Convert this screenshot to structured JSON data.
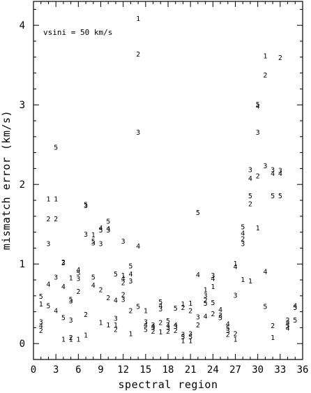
{
  "chart_data": {
    "type": "scatter",
    "title": "",
    "xlabel": "spectral region",
    "ylabel": "mismatch error (km/s)",
    "xlim": [
      0,
      36
    ],
    "ylim": [
      -0.2,
      4.3
    ],
    "x_ticks": [
      "0",
      "3",
      "6",
      "9",
      "12",
      "15",
      "18",
      "21",
      "24",
      "27",
      "30",
      "33",
      "36"
    ],
    "y_ticks": [
      "0",
      "1",
      "2",
      "3",
      "4"
    ],
    "grid": false,
    "annotation": "vsini = 50 km/s",
    "marker_style": "series digit drawn as text",
    "points": [
      {
        "x": 1,
        "y": 0.6,
        "m": "5"
      },
      {
        "x": 1,
        "y": 0.5,
        "m": "1"
      },
      {
        "x": 1,
        "y": 0.28,
        "m": "3"
      },
      {
        "x": 1,
        "y": 0.23,
        "m": "4"
      },
      {
        "x": 1,
        "y": 0.17,
        "m": "2"
      },
      {
        "x": 2,
        "y": 1.82,
        "m": "1"
      },
      {
        "x": 2,
        "y": 1.57,
        "m": "2"
      },
      {
        "x": 2,
        "y": 1.26,
        "m": "3"
      },
      {
        "x": 2,
        "y": 0.75,
        "m": "4"
      },
      {
        "x": 2,
        "y": 0.48,
        "m": "5"
      },
      {
        "x": 3,
        "y": 2.47,
        "m": "5"
      },
      {
        "x": 3,
        "y": 1.82,
        "m": "1"
      },
      {
        "x": 3,
        "y": 1.57,
        "m": "2"
      },
      {
        "x": 3,
        "y": 0.84,
        "m": "3"
      },
      {
        "x": 3,
        "y": 0.42,
        "m": "4"
      },
      {
        "x": 4,
        "y": 1.03,
        "m": "2"
      },
      {
        "x": 4,
        "y": 1.02,
        "m": "3"
      },
      {
        "x": 4,
        "y": 0.72,
        "m": "4"
      },
      {
        "x": 4,
        "y": 0.33,
        "m": "5"
      },
      {
        "x": 4,
        "y": 0.06,
        "m": "1"
      },
      {
        "x": 5,
        "y": 0.83,
        "m": "1"
      },
      {
        "x": 5,
        "y": 0.56,
        "m": "5"
      },
      {
        "x": 5,
        "y": 0.54,
        "m": "3"
      },
      {
        "x": 5,
        "y": 0.3,
        "m": "3"
      },
      {
        "x": 5,
        "y": 0.08,
        "m": "2"
      },
      {
        "x": 5,
        "y": 0.06,
        "m": "1"
      },
      {
        "x": 6,
        "y": 0.93,
        "m": "4"
      },
      {
        "x": 6,
        "y": 0.89,
        "m": "5"
      },
      {
        "x": 6,
        "y": 0.82,
        "m": "3"
      },
      {
        "x": 6,
        "y": 0.66,
        "m": "2"
      },
      {
        "x": 6,
        "y": 0.06,
        "m": "1"
      },
      {
        "x": 7,
        "y": 1.75,
        "m": "5"
      },
      {
        "x": 7,
        "y": 1.74,
        "m": "3"
      },
      {
        "x": 7,
        "y": 1.38,
        "m": "3"
      },
      {
        "x": 7,
        "y": 0.37,
        "m": "2"
      },
      {
        "x": 7,
        "y": 0.11,
        "m": "1"
      },
      {
        "x": 8,
        "y": 1.37,
        "m": "1"
      },
      {
        "x": 8,
        "y": 1.29,
        "m": "5"
      },
      {
        "x": 8,
        "y": 1.27,
        "m": "3"
      },
      {
        "x": 8,
        "y": 0.84,
        "m": "5"
      },
      {
        "x": 8,
        "y": 0.74,
        "m": "4"
      },
      {
        "x": 9,
        "y": 1.46,
        "m": "4"
      },
      {
        "x": 9,
        "y": 1.43,
        "m": "5"
      },
      {
        "x": 9,
        "y": 1.26,
        "m": "3"
      },
      {
        "x": 9,
        "y": 0.68,
        "m": "2"
      },
      {
        "x": 9,
        "y": 0.27,
        "m": "1"
      },
      {
        "x": 10,
        "y": 1.54,
        "m": "5"
      },
      {
        "x": 10,
        "y": 1.45,
        "m": "4"
      },
      {
        "x": 10,
        "y": 1.43,
        "m": "3"
      },
      {
        "x": 10,
        "y": 0.58,
        "m": "2"
      },
      {
        "x": 10,
        "y": 0.24,
        "m": "1"
      },
      {
        "x": 11,
        "y": 0.88,
        "m": "5"
      },
      {
        "x": 11,
        "y": 0.55,
        "m": "4"
      },
      {
        "x": 11,
        "y": 0.32,
        "m": "3"
      },
      {
        "x": 11,
        "y": 0.24,
        "m": "1"
      },
      {
        "x": 11,
        "y": 0.18,
        "m": "2"
      },
      {
        "x": 12,
        "y": 1.29,
        "m": "3"
      },
      {
        "x": 12,
        "y": 0.86,
        "m": "1"
      },
      {
        "x": 12,
        "y": 0.82,
        "m": "4"
      },
      {
        "x": 12,
        "y": 0.77,
        "m": "2"
      },
      {
        "x": 12,
        "y": 0.62,
        "m": "2"
      },
      {
        "x": 12,
        "y": 0.56,
        "m": "3"
      },
      {
        "x": 13,
        "y": 0.98,
        "m": "5"
      },
      {
        "x": 13,
        "y": 0.88,
        "m": "4"
      },
      {
        "x": 13,
        "y": 0.79,
        "m": "3"
      },
      {
        "x": 13,
        "y": 0.42,
        "m": "2"
      },
      {
        "x": 13,
        "y": 0.13,
        "m": "1"
      },
      {
        "x": 14,
        "y": 4.09,
        "m": "1"
      },
      {
        "x": 14,
        "y": 3.64,
        "m": "2"
      },
      {
        "x": 14,
        "y": 2.66,
        "m": "3"
      },
      {
        "x": 14,
        "y": 1.23,
        "m": "4"
      },
      {
        "x": 14,
        "y": 0.47,
        "m": "5"
      },
      {
        "x": 15,
        "y": 0.42,
        "m": "1"
      },
      {
        "x": 15,
        "y": 0.28,
        "m": "3"
      },
      {
        "x": 15,
        "y": 0.24,
        "m": "4"
      },
      {
        "x": 15,
        "y": 0.18,
        "m": "5"
      },
      {
        "x": 16,
        "y": 0.24,
        "m": "3"
      },
      {
        "x": 16,
        "y": 0.22,
        "m": "4"
      },
      {
        "x": 16,
        "y": 0.21,
        "m": "5"
      },
      {
        "x": 16,
        "y": 0.16,
        "m": "2"
      },
      {
        "x": 17,
        "y": 0.53,
        "m": "5"
      },
      {
        "x": 17,
        "y": 0.48,
        "m": "4"
      },
      {
        "x": 17,
        "y": 0.44,
        "m": "3"
      },
      {
        "x": 17,
        "y": 0.27,
        "m": "2"
      },
      {
        "x": 17,
        "y": 0.15,
        "m": "1"
      },
      {
        "x": 18,
        "y": 0.29,
        "m": "5"
      },
      {
        "x": 18,
        "y": 0.23,
        "m": "4"
      },
      {
        "x": 18,
        "y": 0.21,
        "m": "3"
      },
      {
        "x": 18,
        "y": 0.16,
        "m": "2"
      },
      {
        "x": 19,
        "y": 0.24,
        "m": "4"
      },
      {
        "x": 19,
        "y": 0.22,
        "m": "3"
      },
      {
        "x": 19,
        "y": 0.17,
        "m": "2"
      },
      {
        "x": 19,
        "y": 0.45,
        "m": "5"
      },
      {
        "x": 20,
        "y": 0.5,
        "m": "1"
      },
      {
        "x": 20,
        "y": 0.46,
        "m": "2"
      },
      {
        "x": 20,
        "y": 0.12,
        "m": "3"
      },
      {
        "x": 20,
        "y": 0.09,
        "m": "5"
      },
      {
        "x": 20,
        "y": 0.04,
        "m": "1"
      },
      {
        "x": 21,
        "y": 0.51,
        "m": "1"
      },
      {
        "x": 21,
        "y": 0.42,
        "m": "2"
      },
      {
        "x": 21,
        "y": 0.13,
        "m": "3"
      },
      {
        "x": 21,
        "y": 0.09,
        "m": "5"
      },
      {
        "x": 21,
        "y": 0.04,
        "m": "1"
      },
      {
        "x": 22,
        "y": 1.65,
        "m": "5"
      },
      {
        "x": 22,
        "y": 0.87,
        "m": "4"
      },
      {
        "x": 22,
        "y": 0.34,
        "m": "3"
      },
      {
        "x": 22,
        "y": 0.24,
        "m": "2"
      },
      {
        "x": 23,
        "y": 0.68,
        "m": "1"
      },
      {
        "x": 23,
        "y": 0.61,
        "m": "3"
      },
      {
        "x": 23,
        "y": 0.55,
        "m": "2"
      },
      {
        "x": 23,
        "y": 0.51,
        "m": "5"
      },
      {
        "x": 23,
        "y": 0.35,
        "m": "4"
      },
      {
        "x": 24,
        "y": 0.86,
        "m": "3"
      },
      {
        "x": 24,
        "y": 0.82,
        "m": "4"
      },
      {
        "x": 24,
        "y": 0.72,
        "m": "1"
      },
      {
        "x": 24,
        "y": 0.52,
        "m": "5"
      },
      {
        "x": 24,
        "y": 0.38,
        "m": "2"
      },
      {
        "x": 25,
        "y": 0.43,
        "m": "4"
      },
      {
        "x": 25,
        "y": 0.36,
        "m": "3"
      },
      {
        "x": 25,
        "y": 0.33,
        "m": "5"
      },
      {
        "x": 26,
        "y": 0.25,
        "m": "4"
      },
      {
        "x": 26,
        "y": 0.2,
        "m": "5"
      },
      {
        "x": 26,
        "y": 0.17,
        "m": "3"
      },
      {
        "x": 26,
        "y": 0.12,
        "m": "2"
      },
      {
        "x": 27,
        "y": 1.01,
        "m": "1"
      },
      {
        "x": 27,
        "y": 0.97,
        "m": "4"
      },
      {
        "x": 27,
        "y": 0.61,
        "m": "3"
      },
      {
        "x": 27,
        "y": 0.13,
        "m": "2"
      },
      {
        "x": 27,
        "y": 0.06,
        "m": "1"
      },
      {
        "x": 28,
        "y": 1.47,
        "m": "5"
      },
      {
        "x": 28,
        "y": 1.39,
        "m": "4"
      },
      {
        "x": 28,
        "y": 1.32,
        "m": "2"
      },
      {
        "x": 28,
        "y": 1.26,
        "m": "3"
      },
      {
        "x": 28,
        "y": 0.81,
        "m": "1"
      },
      {
        "x": 29,
        "y": 2.19,
        "m": "3"
      },
      {
        "x": 29,
        "y": 2.08,
        "m": "4"
      },
      {
        "x": 29,
        "y": 1.86,
        "m": "5"
      },
      {
        "x": 29,
        "y": 1.76,
        "m": "2"
      },
      {
        "x": 29,
        "y": 0.79,
        "m": "1"
      },
      {
        "x": 30,
        "y": 3.01,
        "m": "5"
      },
      {
        "x": 30,
        "y": 2.99,
        "m": "4"
      },
      {
        "x": 30,
        "y": 2.66,
        "m": "3"
      },
      {
        "x": 30,
        "y": 2.11,
        "m": "2"
      },
      {
        "x": 30,
        "y": 1.46,
        "m": "1"
      },
      {
        "x": 31,
        "y": 3.62,
        "m": "1"
      },
      {
        "x": 31,
        "y": 3.38,
        "m": "2"
      },
      {
        "x": 31,
        "y": 2.24,
        "m": "3"
      },
      {
        "x": 31,
        "y": 0.91,
        "m": "4"
      },
      {
        "x": 31,
        "y": 0.47,
        "m": "5"
      },
      {
        "x": 32,
        "y": 2.19,
        "m": "3"
      },
      {
        "x": 32,
        "y": 2.14,
        "m": "4"
      },
      {
        "x": 32,
        "y": 1.86,
        "m": "5"
      },
      {
        "x": 32,
        "y": 0.23,
        "m": "2"
      },
      {
        "x": 32,
        "y": 0.08,
        "m": "1"
      },
      {
        "x": 33,
        "y": 3.6,
        "m": "2"
      },
      {
        "x": 33,
        "y": 2.18,
        "m": "3"
      },
      {
        "x": 33,
        "y": 2.14,
        "m": "4"
      },
      {
        "x": 33,
        "y": 1.86,
        "m": "5"
      },
      {
        "x": 34,
        "y": 0.3,
        "m": "2"
      },
      {
        "x": 34,
        "y": 0.27,
        "m": "3"
      },
      {
        "x": 34,
        "y": 0.23,
        "m": "5"
      },
      {
        "x": 34,
        "y": 0.2,
        "m": "4"
      },
      {
        "x": 35,
        "y": 0.48,
        "m": "4"
      },
      {
        "x": 35,
        "y": 0.46,
        "m": "5"
      },
      {
        "x": 35,
        "y": 0.3,
        "m": "5"
      }
    ]
  }
}
